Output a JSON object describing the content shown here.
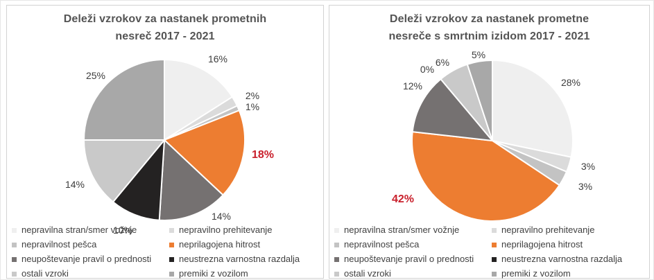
{
  "figure": {
    "background": "#ffffff",
    "outer_border_color": "#e6e6e6",
    "panel_border_color": "#d2d2d2",
    "slice_divider_color": "#ffffff"
  },
  "chart_data": [
    {
      "type": "pie",
      "title": "Deleži vzrokov za nastanek prometnih nesreč 2017 - 2021",
      "title_lines": [
        "Deleži vzrokov za nastanek prometnih",
        "nesreč 2017 - 2021"
      ],
      "categories": [
        "nepravilna stran/smer vožnje",
        "nepravilno prehitevanje",
        "nepravilnost pešca",
        "neprilagojena hitrost",
        "neupoštevanje pravil o prednosti",
        "neustrezna varnostna razdalja",
        "ostali vzroki",
        "premiki z vozilom"
      ],
      "values": [
        16,
        2,
        1,
        18,
        14,
        10,
        14,
        25
      ],
      "labels": [
        "16%",
        "2%",
        "1%",
        "18%",
        "14%",
        "10%",
        "14%",
        "25%"
      ],
      "colors": [
        "#efefef",
        "#dbdbdb",
        "#c3c3c3",
        "#ed7d31",
        "#757171",
        "#242222",
        "#c9c9c9",
        "#a8a8a8"
      ],
      "highlight": {
        "index": 3,
        "label": "18%",
        "color": "#c9202c"
      },
      "start_angle": "12-oclock",
      "direction": "clockwise",
      "legend_position": "bottom",
      "label_color": "#3d3d3d",
      "title_color": "#545454"
    },
    {
      "type": "pie",
      "title": "Deleži vzrokov za nastanek prometne nesreče s smrtnim izidom 2017 - 2021",
      "title_lines": [
        "Deleži vzrokov za nastanek prometne",
        "nesreče s smrtnim izidom 2017 - 2021"
      ],
      "categories": [
        "nepravilna stran/smer vožnje",
        "nepravilno prehitevanje",
        "nepravilnost pešca",
        "neprilagojena hitrost",
        "neupoštevanje pravil o prednosti",
        "neustrezna varnostna razdalja",
        "ostali vzroki",
        "premiki z vozilom"
      ],
      "values": [
        28,
        3,
        3,
        42,
        12,
        0,
        6,
        5
      ],
      "labels": [
        "28%",
        "3%",
        "3%",
        "42%",
        "12%",
        "0%",
        "6%",
        "5%"
      ],
      "colors": [
        "#efefef",
        "#dbdbdb",
        "#c3c3c3",
        "#ed7d31",
        "#757171",
        "#242222",
        "#c9c9c9",
        "#a8a8a8"
      ],
      "highlight": {
        "index": 3,
        "label": "42%",
        "color": "#c9202c"
      },
      "start_angle": "12-oclock",
      "direction": "clockwise",
      "legend_position": "bottom",
      "label_color": "#3d3d3d",
      "title_color": "#545454"
    }
  ]
}
